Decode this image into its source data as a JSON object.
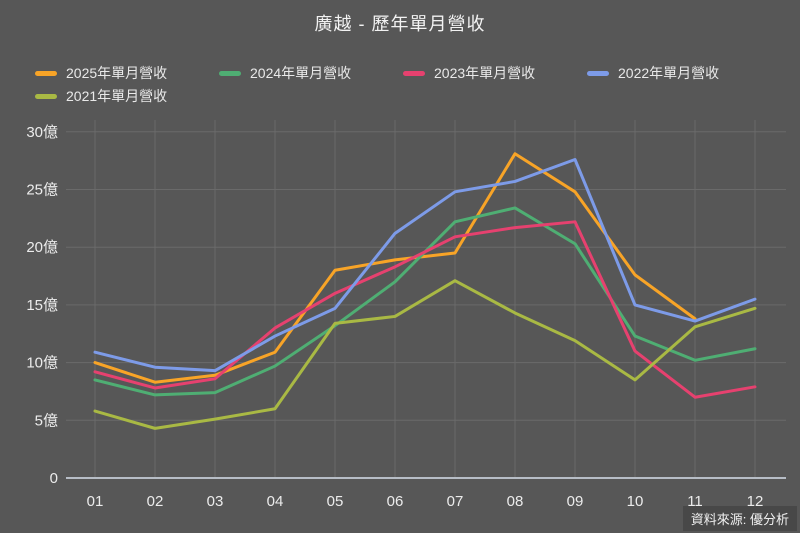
{
  "title": "廣越 - 歷年單月營收",
  "source": "資料來源: 優分析",
  "colors": {
    "background": "#575757",
    "grid": "#6a6a6a",
    "zero_axis": "#b7bdc6",
    "tick_text": "#ececec"
  },
  "chart_data": {
    "type": "line",
    "title": "廣越 - 歷年單月營收",
    "categories": [
      "01",
      "02",
      "03",
      "04",
      "05",
      "06",
      "07",
      "08",
      "09",
      "10",
      "11",
      "12"
    ],
    "xlabel": "",
    "ylabel": "",
    "unit": "億",
    "ylim": [
      0,
      30
    ],
    "y_tick_step": 5,
    "y_ticks": [
      "30億",
      "25億",
      "20億",
      "15億",
      "10億",
      "5億",
      "0"
    ],
    "grid": true,
    "legend_position": "top-left",
    "series": [
      {
        "name": "2025年單月營收",
        "color": "#F8A427",
        "values": [
          10.0,
          8.3,
          8.9,
          10.9,
          18.0,
          18.9,
          19.5,
          28.1,
          24.8,
          17.6,
          13.8,
          null
        ]
      },
      {
        "name": "2024年單月營收",
        "color": "#4FAE73",
        "values": [
          8.5,
          7.2,
          7.4,
          9.7,
          13.2,
          17.0,
          22.2,
          23.4,
          20.3,
          12.3,
          10.2,
          11.2
        ]
      },
      {
        "name": "2023年單月營收",
        "color": "#E6416F",
        "values": [
          9.2,
          7.8,
          8.6,
          13.0,
          16.0,
          18.3,
          20.9,
          21.7,
          22.2,
          11.0,
          7.0,
          7.9
        ]
      },
      {
        "name": "2022年單月營收",
        "color": "#7D9BE8",
        "values": [
          10.9,
          9.6,
          9.3,
          12.3,
          14.7,
          21.2,
          24.8,
          25.7,
          27.6,
          15.0,
          13.6,
          15.5
        ]
      },
      {
        "name": "2021年單月營收",
        "color": "#A9B944",
        "values": [
          5.8,
          4.3,
          5.1,
          6.0,
          13.4,
          14.0,
          17.1,
          14.3,
          11.9,
          8.5,
          13.1,
          14.7
        ]
      }
    ]
  }
}
